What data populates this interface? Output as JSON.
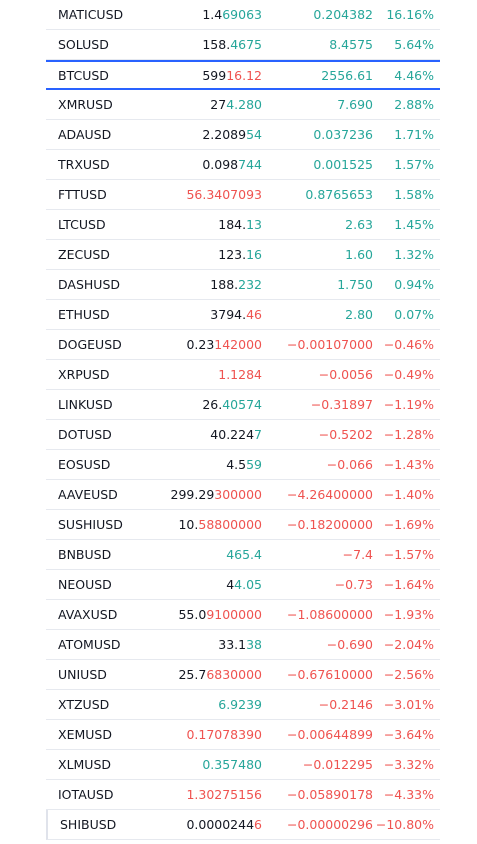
{
  "rows": [
    {
      "symbol": "MATICUSD",
      "price_head": "1.4",
      "price_tail": "69063",
      "price_color": "up",
      "change": "0.204382",
      "change_pct": "16.16%",
      "color": "up"
    },
    {
      "symbol": "SOLUSD",
      "price_head": "158.",
      "price_tail": "4675",
      "price_color": "up",
      "change": "8.4575",
      "change_pct": "5.64%",
      "color": "up"
    },
    {
      "symbol": "BTCUSD",
      "price_head": "599",
      "price_tail": "16.12",
      "price_color": "down",
      "change": "2556.61",
      "change_pct": "4.46%",
      "color": "up",
      "selected": true
    },
    {
      "symbol": "XMRUSD",
      "price_head": "27",
      "price_tail": "4.280",
      "price_color": "up",
      "change": "7.690",
      "change_pct": "2.88%",
      "color": "up"
    },
    {
      "symbol": "ADAUSD",
      "price_head": "2.2089",
      "price_tail": "54",
      "price_color": "up",
      "change": "0.037236",
      "change_pct": "1.71%",
      "color": "up"
    },
    {
      "symbol": "TRXUSD",
      "price_head": "0.098",
      "price_tail": "744",
      "price_color": "up",
      "change": "0.001525",
      "change_pct": "1.57%",
      "color": "up"
    },
    {
      "symbol": "FTTUSD",
      "price_tail": "56.3407093",
      "price_color": "down",
      "change": "0.8765653",
      "change_pct": "1.58%",
      "color": "up"
    },
    {
      "symbol": "LTCUSD",
      "price_head": "184.",
      "price_tail": "13",
      "price_color": "up",
      "change": "2.63",
      "change_pct": "1.45%",
      "color": "up"
    },
    {
      "symbol": "ZECUSD",
      "price_head": "123.",
      "price_tail": "16",
      "price_color": "up",
      "change": "1.60",
      "change_pct": "1.32%",
      "color": "up"
    },
    {
      "symbol": "DASHUSD",
      "price_head": "188.",
      "price_tail": "232",
      "price_color": "up",
      "change": "1.750",
      "change_pct": "0.94%",
      "color": "up"
    },
    {
      "symbol": "ETHUSD",
      "price_head": "3794.",
      "price_tail": "46",
      "price_color": "down",
      "change": "2.80",
      "change_pct": "0.07%",
      "color": "up"
    },
    {
      "symbol": "DOGEUSD",
      "price_head": "0.23",
      "price_tail": "142000",
      "price_color": "down",
      "change": "−0.00107000",
      "change_pct": "−0.46%",
      "color": "down"
    },
    {
      "symbol": "XRPUSD",
      "price_tail": "1.1284",
      "price_color": "down",
      "change": "−0.0056",
      "change_pct": "−0.49%",
      "color": "down"
    },
    {
      "symbol": "LINKUSD",
      "price_head": "26.",
      "price_tail": "40574",
      "price_color": "up",
      "change": "−0.31897",
      "change_pct": "−1.19%",
      "color": "down"
    },
    {
      "symbol": "DOTUSD",
      "price_head": "40.224",
      "price_tail": "7",
      "price_color": "up",
      "change": "−0.5202",
      "change_pct": "−1.28%",
      "color": "down"
    },
    {
      "symbol": "EOSUSD",
      "price_head": "4.5",
      "price_tail": "59",
      "price_color": "up",
      "change": "−0.066",
      "change_pct": "−1.43%",
      "color": "down"
    },
    {
      "symbol": "AAVEUSD",
      "price_head": "299.29",
      "price_tail": "300000",
      "price_color": "down",
      "change": "−4.26400000",
      "change_pct": "−1.40%",
      "color": "down"
    },
    {
      "symbol": "SUSHIUSD",
      "price_head": "10.",
      "price_tail": "58800000",
      "price_color": "down",
      "change": "−0.18200000",
      "change_pct": "−1.69%",
      "color": "down"
    },
    {
      "symbol": "BNBUSD",
      "price_tail": "465.4",
      "price_color": "up",
      "change": "−7.4",
      "change_pct": "−1.57%",
      "color": "down"
    },
    {
      "symbol": "NEOUSD",
      "price_head": "4",
      "price_tail": "4.05",
      "price_color": "up",
      "change": "−0.73",
      "change_pct": "−1.64%",
      "color": "down"
    },
    {
      "symbol": "AVAXUSD",
      "price_head": "55.0",
      "price_tail": "9100000",
      "price_color": "down",
      "change": "−1.08600000",
      "change_pct": "−1.93%",
      "color": "down"
    },
    {
      "symbol": "ATOMUSD",
      "price_head": "33.1",
      "price_tail": "38",
      "price_color": "up",
      "change": "−0.690",
      "change_pct": "−2.04%",
      "color": "down"
    },
    {
      "symbol": "UNIUSD",
      "price_head": "25.7",
      "price_tail": "6830000",
      "price_color": "down",
      "change": "−0.67610000",
      "change_pct": "−2.56%",
      "color": "down"
    },
    {
      "symbol": "XTZUSD",
      "price_tail": "6.9239",
      "price_color": "up",
      "change": "−0.2146",
      "change_pct": "−3.01%",
      "color": "down"
    },
    {
      "symbol": "XEMUSD",
      "price_tail": "0.17078390",
      "price_color": "down",
      "change": "−0.00644899",
      "change_pct": "−3.64%",
      "color": "down"
    },
    {
      "symbol": "XLMUSD",
      "price_tail": "0.357480",
      "price_color": "up",
      "change": "−0.012295",
      "change_pct": "−3.32%",
      "color": "down"
    },
    {
      "symbol": "IOTAUSD",
      "price_tail": "1.30275156",
      "price_color": "down",
      "change": "−0.05890178",
      "change_pct": "−4.33%",
      "color": "down"
    },
    {
      "symbol": "SHIBUSD",
      "price_head": "0.0000244",
      "price_tail": "6",
      "price_color": "down",
      "change": "−0.00000296",
      "change_pct": "−10.80%",
      "color": "down"
    }
  ]
}
